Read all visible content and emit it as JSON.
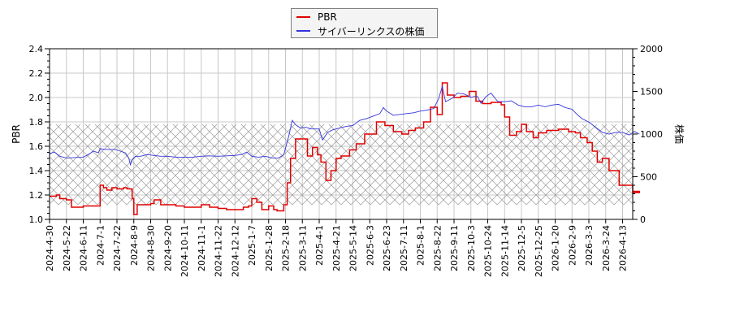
{
  "legend": {
    "items": [
      {
        "label": "PBR",
        "color": "#e00000"
      },
      {
        "label": "サイバーリンクスの株価",
        "color": "#3333dd"
      }
    ]
  },
  "axes": {
    "left_title": "PBR",
    "right_title": "株価"
  },
  "chart_data": {
    "type": "line",
    "title": "",
    "xlabel": "",
    "ylabel": "PBR",
    "y2label": "株価",
    "ylim": [
      1.0,
      2.4
    ],
    "y2lim": [
      0,
      2000
    ],
    "yticks": [
      "1.0",
      "1.2",
      "1.4",
      "1.6",
      "1.8",
      "2.0",
      "2.2",
      "2.4"
    ],
    "y2ticks": [
      "0",
      "500",
      "1000",
      "1500",
      "2000"
    ],
    "grid": true,
    "legend_position": "top-center",
    "shaded_band": {
      "y_from": 1.12,
      "y_to": 1.78,
      "style": "crosshatch"
    },
    "x_tick_labels": [
      "2024-4-30",
      "2024-5-22",
      "2024-6-11",
      "2024-7-1",
      "2024-7-22",
      "2024-8-9",
      "2024-8-30",
      "2024-9-20",
      "2024-10-11",
      "2024-11-1",
      "2024-11-22",
      "2024-12-12",
      "2025-1-7",
      "2025-1-28",
      "2025-2-18",
      "2025-3-11",
      "2025-4-1",
      "2025-4-21",
      "2025-5-14",
      "2025-6-3",
      "2025-6-23",
      "2025-7-11",
      "2025-8-1",
      "2025-8-22",
      "2025-9-11",
      "2025-10-3",
      "2025-10-24",
      "2025-11-14",
      "2025-12-5",
      "2025-12-25",
      "2026-1-20",
      "2026-2-9",
      "2026-3-3",
      "2026-3-24",
      "2026-4-13"
    ],
    "series": [
      {
        "name": "PBR",
        "axis": "left",
        "color": "#e00000",
        "points_t": [
          0,
          0.4,
          0.6,
          1.0,
          1.3,
          1.8,
          2.0,
          2.9,
          3.0,
          3.2,
          3.4,
          3.7,
          4.0,
          4.4,
          4.6,
          4.9,
          5.0,
          5.2,
          5.5,
          6.0,
          6.2,
          6.6,
          7.0,
          7.5,
          8.0,
          8.6,
          9.0,
          9.5,
          10.0,
          10.5,
          11.0,
          11.5,
          11.8,
          12.0,
          12.3,
          12.6,
          13.0,
          13.3,
          13.5,
          13.9,
          14.1,
          14.3,
          14.6,
          15.0,
          15.3,
          15.6,
          15.9,
          16.1,
          16.4,
          16.7,
          17.0,
          17.3,
          17.8,
          18.2,
          18.7,
          19.4,
          19.9,
          20.4,
          20.9,
          21.3,
          21.7,
          22.2,
          22.6,
          23.0,
          23.3,
          23.6,
          24.0,
          24.4,
          24.9,
          25.3,
          25.7,
          26.2,
          26.8,
          27.0,
          27.3,
          27.7,
          28.0,
          28.3,
          28.7,
          29.0,
          29.5,
          30.2,
          30.8,
          31.2,
          31.5,
          31.9,
          32.2,
          32.5,
          32.8,
          33.2,
          33.8,
          34.2,
          34.6,
          35.0
        ],
        "values": [
          1.19,
          1.2,
          1.17,
          1.16,
          1.1,
          1.1,
          1.11,
          1.11,
          1.28,
          1.26,
          1.24,
          1.26,
          1.25,
          1.26,
          1.25,
          1.17,
          1.04,
          1.12,
          1.12,
          1.13,
          1.16,
          1.12,
          1.12,
          1.11,
          1.1,
          1.1,
          1.12,
          1.1,
          1.09,
          1.08,
          1.08,
          1.1,
          1.11,
          1.17,
          1.14,
          1.08,
          1.11,
          1.08,
          1.07,
          1.12,
          1.3,
          1.5,
          1.66,
          1.66,
          1.52,
          1.59,
          1.53,
          1.47,
          1.32,
          1.4,
          1.5,
          1.52,
          1.57,
          1.62,
          1.7,
          1.8,
          1.77,
          1.72,
          1.7,
          1.73,
          1.75,
          1.8,
          1.92,
          1.86,
          2.12,
          2.02,
          2.0,
          2.01,
          2.05,
          1.97,
          1.95,
          1.96,
          1.94,
          1.84,
          1.69,
          1.72,
          1.78,
          1.72,
          1.67,
          1.71,
          1.73,
          1.74,
          1.72,
          1.71,
          1.67,
          1.63,
          1.56,
          1.47,
          1.5,
          1.4,
          1.28,
          1.28,
          1.22,
          1.23
        ]
      },
      {
        "name": "サイバーリンクスの株価",
        "axis": "right",
        "color": "#3333dd",
        "points_t": [
          0,
          0.3,
          0.6,
          1.0,
          1.5,
          2.0,
          2.3,
          2.6,
          2.9,
          3.0,
          3.3,
          3.6,
          3.9,
          4.2,
          4.5,
          4.7,
          4.8,
          4.9,
          5.1,
          5.4,
          5.8,
          6.2,
          6.6,
          7.0,
          7.5,
          8.0,
          8.5,
          9.0,
          9.5,
          10.0,
          10.5,
          11.0,
          11.4,
          11.7,
          12.0,
          12.4,
          12.8,
          13.2,
          13.6,
          13.9,
          14.2,
          14.4,
          14.6,
          14.9,
          15.2,
          15.5,
          15.8,
          16.0,
          16.2,
          16.5,
          16.8,
          17.2,
          17.6,
          18.0,
          18.4,
          18.8,
          19.2,
          19.6,
          19.8,
          20.0,
          20.4,
          20.8,
          21.2,
          21.6,
          22.0,
          22.4,
          22.8,
          23.1,
          23.3,
          23.5,
          23.7,
          23.9,
          24.2,
          24.6,
          25.0,
          25.2,
          25.4,
          25.6,
          25.9,
          26.2,
          26.6,
          27.0,
          27.4,
          27.8,
          28.2,
          28.6,
          29.0,
          29.4,
          29.8,
          30.2,
          30.6,
          31.0,
          31.3,
          31.6,
          32.0,
          32.4,
          32.8,
          33.2,
          33.6,
          34.0,
          34.4,
          34.7,
          35.0
        ],
        "values": [
          770,
          790,
          740,
          720,
          725,
          730,
          760,
          800,
          780,
          830,
          820,
          820,
          820,
          800,
          780,
          720,
          640,
          700,
          740,
          740,
          760,
          750,
          740,
          740,
          730,
          730,
          730,
          740,
          745,
          740,
          745,
          750,
          760,
          790,
          740,
          730,
          740,
          720,
          720,
          760,
          980,
          1160,
          1110,
          1070,
          1080,
          1060,
          1060,
          1060,
          930,
          1020,
          1050,
          1070,
          1090,
          1100,
          1160,
          1180,
          1210,
          1240,
          1310,
          1270,
          1220,
          1230,
          1240,
          1250,
          1270,
          1280,
          1300,
          1420,
          1560,
          1380,
          1400,
          1420,
          1480,
          1470,
          1430,
          1440,
          1440,
          1360,
          1440,
          1480,
          1380,
          1380,
          1390,
          1340,
          1320,
          1320,
          1340,
          1320,
          1340,
          1350,
          1310,
          1290,
          1230,
          1180,
          1140,
          1080,
          1020,
          1000,
          1020,
          1020,
          990,
          1030,
          1000
        ]
      }
    ]
  }
}
